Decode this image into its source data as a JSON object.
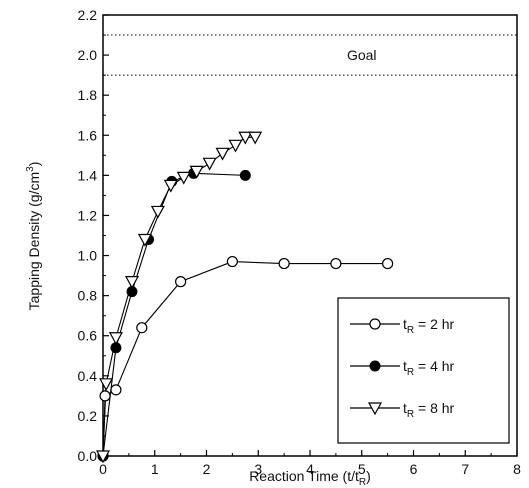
{
  "chart_data": {
    "type": "line",
    "xlabel": {
      "main": "Reaction Time (t/t",
      "sub": "R",
      "end": ")"
    },
    "ylabel": {
      "main": "Tapping Density (g/cm",
      "sup": "3",
      "end": ")"
    },
    "xlim": [
      0,
      8
    ],
    "ylim": [
      0.0,
      2.2
    ],
    "xticks": [
      0,
      1,
      2,
      3,
      4,
      5,
      6,
      7,
      8
    ],
    "yticks": [
      0.0,
      0.2,
      0.4,
      0.6,
      0.8,
      1.0,
      1.2,
      1.4,
      1.6,
      1.8,
      2.0,
      2.2
    ],
    "ytick_decimals": 1,
    "grid": false,
    "legend_position": "bottom-right",
    "goal": {
      "label": "Goal",
      "lower": 1.9,
      "upper": 2.1
    },
    "series": [
      {
        "name": {
          "pre": "t",
          "sub": "R",
          "post": " = 2 hr"
        },
        "marker": "open-circle",
        "points": [
          [
            0,
            0.0
          ],
          [
            0.04,
            0.3
          ],
          [
            0.25,
            0.33
          ],
          [
            0.75,
            0.64
          ],
          [
            1.5,
            0.87
          ],
          [
            2.5,
            0.97
          ],
          [
            3.5,
            0.96
          ],
          [
            4.5,
            0.96
          ],
          [
            5.5,
            0.96
          ]
        ]
      },
      {
        "name": {
          "pre": "t",
          "sub": "R",
          "post": " = 4 hr"
        },
        "marker": "filled-circle",
        "points": [
          [
            0,
            0.0
          ],
          [
            0.25,
            0.54
          ],
          [
            0.56,
            0.82
          ],
          [
            0.88,
            1.08
          ],
          [
            1.33,
            1.37
          ],
          [
            1.75,
            1.41
          ],
          [
            2.75,
            1.4
          ]
        ]
      },
      {
        "name": {
          "pre": "t",
          "sub": "R",
          "post": " = 8 hr"
        },
        "marker": "open-triangle-down",
        "points": [
          [
            0,
            0.0
          ],
          [
            0.06,
            0.36
          ],
          [
            0.25,
            0.59
          ],
          [
            0.56,
            0.87
          ],
          [
            0.81,
            1.08
          ],
          [
            1.06,
            1.22
          ],
          [
            1.31,
            1.35
          ],
          [
            1.56,
            1.39
          ],
          [
            1.81,
            1.42
          ],
          [
            2.06,
            1.46
          ],
          [
            2.31,
            1.51
          ],
          [
            2.56,
            1.55
          ],
          [
            2.75,
            1.59
          ],
          [
            2.94,
            1.59
          ]
        ]
      }
    ]
  }
}
